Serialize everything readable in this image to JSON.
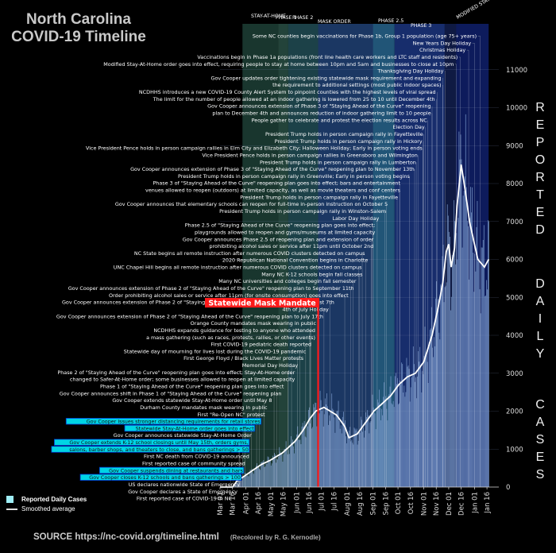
{
  "header": {
    "title_line1": "North Carolina",
    "title_line2": "COVID-19 Timeline"
  },
  "ylabel": {
    "word1": "REPORTED",
    "word2": "DAILY",
    "word3": "CASES"
  },
  "legend": {
    "bars_label": "Reported Daily Cases",
    "line_label": "Smoothed average"
  },
  "source": {
    "text": "SOURCE  https://nc-covid.org/timeline.html",
    "recolor": "(Recolored by R. G. Kernodle)"
  },
  "colors": {
    "bar": "#7f9fd0",
    "line": "#ffffff",
    "mask_red": "#ff1a1a",
    "cyan_highlight": "#00d4e4"
  },
  "chart_data": {
    "type": "bar",
    "title": "North Carolina COVID-19 Timeline",
    "xlabel": "",
    "ylabel": "Reported Daily Cases",
    "ylim": [
      0,
      12000
    ],
    "yticks": [
      0,
      1000,
      2000,
      3000,
      4000,
      5000,
      6000,
      7000,
      8000,
      9000,
      10000,
      11000
    ],
    "xtick_labels": [
      "Mar 01",
      "Mar 16",
      "Apr 01",
      "Apr 16",
      "May 01",
      "May 16",
      "Jun 01",
      "Jun 16",
      "Jul 01",
      "Jul 16",
      "Aug 01",
      "Aug 16",
      "Sep 01",
      "Sep 16",
      "Oct 01",
      "Oct 16",
      "Nov 01",
      "Nov 16",
      "Dec 01",
      "Dec 16",
      "Jan 01",
      "Jan 16"
    ],
    "smoothed_series": {
      "name": "Smoothed average",
      "days": [
        0,
        15,
        20,
        30,
        40,
        50,
        60,
        75,
        90,
        100,
        108,
        115,
        125,
        140,
        150,
        155,
        165,
        175,
        185,
        195,
        205,
        215,
        225,
        235,
        245,
        255,
        262,
        268,
        272,
        275,
        278,
        282,
        285,
        290,
        295,
        300,
        305,
        310,
        318,
        323
      ],
      "values": [
        0,
        0,
        150,
        300,
        450,
        600,
        700,
        900,
        1200,
        1500,
        1800,
        2000,
        2100,
        1900,
        1600,
        1300,
        1400,
        1700,
        2000,
        2200,
        2400,
        2700,
        2900,
        3000,
        3300,
        4000,
        4700,
        5400,
        6200,
        6400,
        5800,
        6300,
        7400,
        8500,
        7800,
        7000,
        6500,
        6000,
        5800,
        6000
      ]
    },
    "phases": [
      {
        "label": "STAY-AT-HOME",
        "start_day": 27,
        "end_day": 70
      },
      {
        "label": "PHASE 1",
        "start_day": 70,
        "end_day": 82
      },
      {
        "label": "PHASE 2",
        "start_day": 82,
        "end_day": 209
      },
      {
        "label": "MASK ORDER",
        "start_day": 118,
        "end_day": 323
      },
      {
        "label": "PHASE 2.5",
        "start_day": 184,
        "end_day": 210
      },
      {
        "label": "PHASE 3",
        "start_day": 210,
        "end_day": 270
      },
      {
        "label": "MODIFIED STAY-AT-HOME",
        "start_day": 284,
        "end_day": 323
      }
    ],
    "mask_mandate": {
      "label": "Statewide Mask Mandate",
      "day": 118
    },
    "events": [
      {
        "text": "Some NC counties begin vaccinations for Phase 1b, Group 1 population (age 75+ years)",
        "day": 313
      },
      {
        "text": "New Years Day Holiday",
        "day": 306
      },
      {
        "text": "Christmas Holiday",
        "day": 299
      },
      {
        "text": "Vaccinations begin in Phase 1a populations (front line health care workers and LTC staff and residents)",
        "day": 289
      },
      {
        "text": "Modified Stay-At-Home order goes into effect, requiring people to stay at home between 10pm and 5am and businesses to close at 10pm",
        "day": 284
      },
      {
        "text": "Thanksgiving Day Holiday",
        "day": 271
      },
      {
        "text": "Gov Cooper updates order tightening existing statewide mask requirement and expanding",
        "day": 268
      },
      {
        "text": "the requirement to additional settings (most public indoor spaces)",
        "day": 268
      },
      {
        "text": "NCDHHS introduces a new COVID-19 County Alert System to pinpoint counties with the highest levels of viral spread",
        "day": 261
      },
      {
        "text": "The limit for the number of people allowed at an indoor gathering is lowered from 25 to 10 until December 4th",
        "day": 260
      },
      {
        "text": "Gov Cooper announces extension of Phase 3 of \"Staying Ahead of the Curve\" reopening",
        "day": 255
      },
      {
        "text": "plan to December 4th and announces reduction of indoor gathering limit to 10 people",
        "day": 255
      },
      {
        "text": "People gather to celebrate and protest the election results across NC",
        "day": 250
      },
      {
        "text": "Election Day",
        "day": 247
      },
      {
        "text": "President Trump holds in person campaign rally in Fayetteville",
        "day": 245
      },
      {
        "text": "President Trump holds in person campaign rally in Hickory",
        "day": 244
      },
      {
        "text": "Vice President Pence holds in person campaign rallies in Elm City and Elizabeth City; Halloween Holiday; Early in person voting ends",
        "day": 244
      },
      {
        "text": "Vice President Pence holds in person campaign rallies in Greensboro and Wilmington",
        "day": 238
      },
      {
        "text": "President Trump holds in person campaign rally in Lumberton",
        "day": 236
      },
      {
        "text": "Gov Cooper announces extension of Phase 3 of \"Staying Ahead of the Curve\" reopening plan to November 13th",
        "day": 234
      },
      {
        "text": "President Trump holds in person campaign rally in Greenville; Early in person voting begins",
        "day": 228
      },
      {
        "text": "Phase 3 of \"Staying Ahead of the Curve\" reopening plan goes into effect; bars and entertainment",
        "day": 216
      },
      {
        "text": "venues allowed to reopen (outdoors) at limited capacity, as well as movie theaters and conf centers",
        "day": 216
      },
      {
        "text": "President Trump holds in person campaign rally in Fayetteville",
        "day": 213
      },
      {
        "text": "Gov Cooper announces that elementary schools can reopen for full-time in-person instruction on October 5",
        "day": 200
      },
      {
        "text": "President Trump holds in person campaign rally in Winston-Salem",
        "day": 198
      },
      {
        "text": "Labor Day Holiday",
        "day": 189
      },
      {
        "text": "Phase 2.5 of \"Staying Ahead of the Curve\" reopening plan goes into effect;",
        "day": 184
      },
      {
        "text": "playgrounds allowed to reopen and gyms/museums at limited capacity",
        "day": 184
      },
      {
        "text": "Gov Cooper announces Phase 2.5 of reopening plan and extension of order",
        "day": 182
      },
      {
        "text": "prohibiting alcohol sales or service after 11pm until October 2nd",
        "day": 182
      },
      {
        "text": "NC State begins all remote instruction after numerous COVID clusters detected on campus",
        "day": 171
      },
      {
        "text": "2020 Republican National Convention begins in Charlotte",
        "day": 175
      },
      {
        "text": "UNC Chapel Hill begins all remote instruction after numerous COVID clusters detected on campus",
        "day": 167
      },
      {
        "text": "Many NC K-12 schools begin fall classes",
        "day": 168
      },
      {
        "text": "Many NC universities and colleges begin fall semester",
        "day": 160
      },
      {
        "text": "Gov Cooper announces extension of Phase 2 of \"Staying Ahead of the Curve\" reopening plan to September 11th",
        "day": 157
      },
      {
        "text": "Order prohibiting alcohol sales or service after 11pm (for onsite consumption) goes into effect",
        "day": 150
      },
      {
        "text": "Gov Cooper announces extension of Phase 2 of \"Staying Ahead of the Curve\" reopening plan to August 7th",
        "day": 132
      },
      {
        "text": "4th of July Holiday",
        "day": 125
      },
      {
        "text": "Gov Cooper announces extension of Phase 2 of \"Staying Ahead of the Curve\" reopening plan to July 17th",
        "day": 118
      },
      {
        "text": "Orange County mandates mask wearing in public",
        "day": 109
      },
      {
        "text": "NCDHHS expands guidance for testing to anyone who attended",
        "day": 108
      },
      {
        "text": "a mass gathering (such as races, protests, rallies, or other events)",
        "day": 108
      },
      {
        "text": "First COVID-19 pediatric death reported",
        "day": 103
      },
      {
        "text": "Statewide day of mourning for lives lost during the COVID-19 pandemic",
        "day": 96
      },
      {
        "text": "First George Floyd / Black Lives Matter protests",
        "day": 93
      },
      {
        "text": "Memorial Day Holiday",
        "day": 86
      },
      {
        "text": "Phase 2 of \"Staying Ahead of the Curve\" reopening plan goes into effect; Stay-At-Home order",
        "day": 82
      },
      {
        "text": "changed to Safer-At-Home order; some businesses allowed to reopen at limited capacity",
        "day": 82
      },
      {
        "text": "Phase 1 of \"Staying Ahead of the Curve\" reopening plan goes into effect",
        "day": 68
      },
      {
        "text": "Gov Cooper announces shift in Phase 1 of \"Staying Ahead of the Curve\" reopening plan",
        "day": 65
      },
      {
        "text": "Gov Cooper extends statewide Stay-At-Home order until May 8",
        "day": 53
      },
      {
        "text": "Durham County mandates mask wearing in public",
        "day": 47
      },
      {
        "text": "First \"Re-Open NC\" protest",
        "day": 44
      },
      {
        "text": "Gov Cooper issues stronger distancing requirements for retail stores",
        "day": 38,
        "highlight": true
      },
      {
        "text": "Statewide Stay-At-Home order goes into effect",
        "day": 30,
        "highlight": true
      },
      {
        "text": "Gov Cooper announces statewide Stay-At-Home Order",
        "day": 27
      },
      {
        "text": "Gov Cooper extends K-12 school closings until May 15th, orders gyms,",
        "day": 23,
        "highlight": true
      },
      {
        "text": "salons, barber shops, and theaters to close, and bans gatherings > 50",
        "day": 23,
        "highlight": true
      },
      {
        "text": "First NC death from COVID-19 announced",
        "day": 24
      },
      {
        "text": "First reported case of community spread",
        "day": 19
      },
      {
        "text": "Gov Cooper suspends dining at restaurants and bars",
        "day": 16,
        "highlight": true
      },
      {
        "text": "Gov Cooper closes K-12 schools and bans gatherings > 100",
        "day": 13,
        "highlight": true
      },
      {
        "text": "US declares nationwide State of Emergency",
        "day": 12
      },
      {
        "text": "Gov Cooper declares a State of Emergency",
        "day": 9
      },
      {
        "text": "First reported case of COVID-19 in NC",
        "day": 2
      }
    ]
  }
}
